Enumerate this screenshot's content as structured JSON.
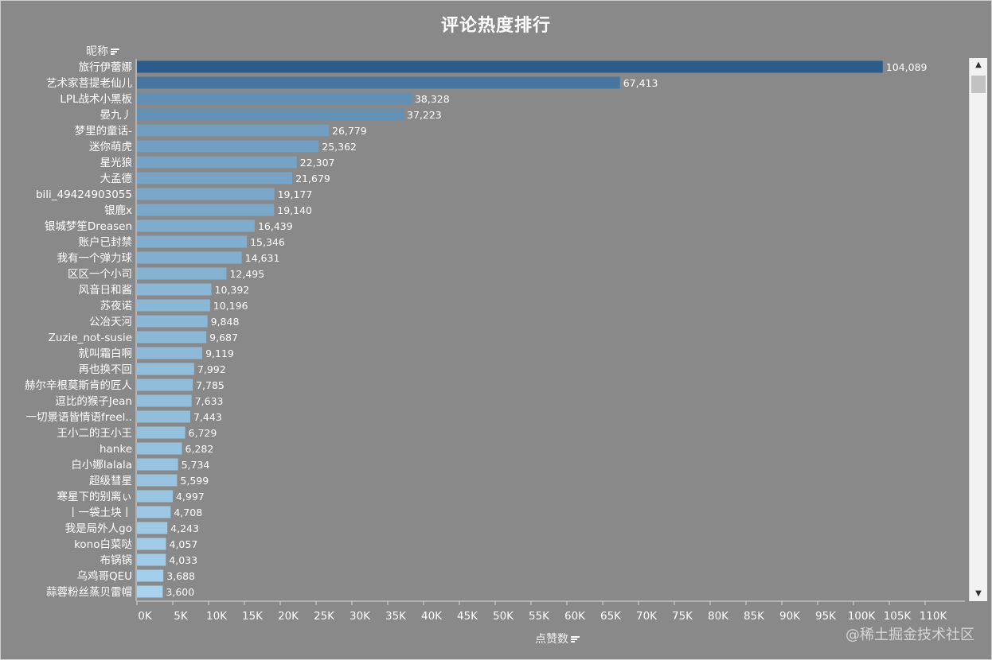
{
  "title": "评论热度排行",
  "row_header": "昵称",
  "watermark": "@稀土掘金技术社区",
  "chart_data": {
    "type": "bar",
    "orientation": "horizontal",
    "title": "评论热度排行",
    "xlabel": "点赞数",
    "ylabel": "昵称",
    "xlim": [
      0,
      115000
    ],
    "x_ticks": [
      "0K",
      "5K",
      "10K",
      "15K",
      "20K",
      "25K",
      "30K",
      "35K",
      "40K",
      "45K",
      "50K",
      "55K",
      "60K",
      "65K",
      "70K",
      "75K",
      "80K",
      "85K",
      "90K",
      "95K",
      "100K",
      "105K",
      "110K"
    ],
    "x_tick_values": [
      0,
      5000,
      10000,
      15000,
      20000,
      25000,
      30000,
      35000,
      40000,
      45000,
      50000,
      55000,
      60000,
      65000,
      70000,
      75000,
      80000,
      85000,
      90000,
      95000,
      100000,
      105000,
      110000
    ],
    "colors": {
      "max": "#2b5c8a",
      "min": "#a7d1ec"
    },
    "categories": [
      "旅行伊蕾娜",
      "艺术家菩提老仙儿",
      "LPL战术小黑板",
      "晏九丿",
      "梦里的童话-",
      "迷你萌虎",
      "星光狼",
      "大孟德",
      "bili_49424903055",
      "银鹿x",
      "银城梦笙Dreasen",
      "账户已封禁",
      "我有一个弹力球",
      "区区一个小司",
      "风音日和酱",
      "苏夜诺",
      "公冶天河",
      "Zuzie_not-susie",
      "就叫霜白啊",
      "再也换不回",
      "赫尔辛根莫斯肯的匠人",
      "逗比的猴子Jean",
      "一切景语皆情语freel..",
      "王小二的王小王",
      "hanke",
      "白小娜lalala",
      "超级彗星",
      "寒星下的别离ぃ",
      "丨一袋土块丨",
      "我是局外人go",
      "kono白菜哒",
      "布锅锅",
      "乌鸡哥QEU",
      "蒜蓉粉丝蒸贝雷帽"
    ],
    "values": [
      104089,
      67413,
      38328,
      37223,
      26779,
      25362,
      22307,
      21679,
      19177,
      19140,
      16439,
      15346,
      14631,
      12495,
      10392,
      10196,
      9848,
      9687,
      9119,
      7992,
      7785,
      7633,
      7443,
      6729,
      6282,
      5734,
      5599,
      4997,
      4708,
      4243,
      4057,
      4033,
      3688,
      3600
    ],
    "value_labels": [
      "104,089",
      "67,413",
      "38,328",
      "37,223",
      "26,779",
      "25,362",
      "22,307",
      "21,679",
      "19,177",
      "19,140",
      "16,439",
      "15,346",
      "14,631",
      "12,495",
      "10,392",
      "10,196",
      "9,848",
      "9,687",
      "9,119",
      "7,992",
      "7,785",
      "7,633",
      "7,443",
      "6,729",
      "6,282",
      "5,734",
      "5,599",
      "4,997",
      "4,708",
      "4,243",
      "4,057",
      "4,033",
      "3,688",
      "3,600"
    ]
  }
}
